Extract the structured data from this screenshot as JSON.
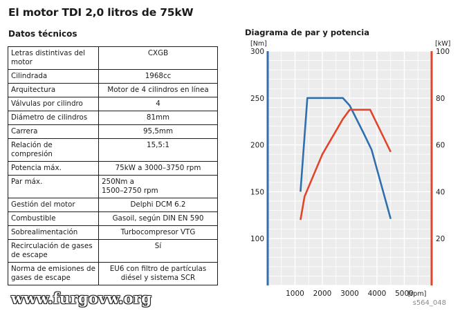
{
  "title": "El motor TDI 2,0 litros de 75kW",
  "section_title": "Datos técnicos",
  "specs": [
    {
      "label": "Letras distintivas del motor",
      "value": "CXGB"
    },
    {
      "label": "Cilindrada",
      "value": "1968cc"
    },
    {
      "label": "Arquitectura",
      "value": "Motor de 4 cilindros en línea"
    },
    {
      "label": "Válvulas por cilindro",
      "value": "4"
    },
    {
      "label": "Diámetro de cilindros",
      "value": "81mm"
    },
    {
      "label": "Carrera",
      "value": "95,5mm"
    },
    {
      "label": "Relación de compresión",
      "value": "15,5:1"
    },
    {
      "label": "Potencia máx.",
      "value": "75kW a 3000–3750 rpm"
    },
    {
      "label": "Par máx.",
      "value": "250Nm a\n1500–2750 rpm"
    },
    {
      "label": "Gestión del motor",
      "value": "Delphi DCM 6.2"
    },
    {
      "label": "Combustible",
      "value": "Gasoil, según DIN EN 590"
    },
    {
      "label": "Sobrealimentación",
      "value": "Turbocompresor VTG"
    },
    {
      "label": "Recirculación de gases de escape",
      "value": "Sí"
    },
    {
      "label": "Norma de emisiones de gases de escape",
      "value": "EU6 con filtro de partículas diésel y sistema SCR"
    }
  ],
  "watermark": "www.furgovw.org",
  "figure_code": "s564_048",
  "chart_data": {
    "type": "line",
    "title": "Diagrama de par y potencia",
    "xlabel": "[rpm]",
    "ylabel_left": "[Nm]",
    "ylabel_right": "[kW]",
    "xlim": [
      0,
      6000
    ],
    "xticks": [
      1000,
      2000,
      3000,
      4000,
      5000
    ],
    "ylim_left": [
      50,
      300
    ],
    "yticks_left": [
      100,
      150,
      200,
      250,
      300
    ],
    "ylim_right": [
      0,
      100
    ],
    "yticks_right": [
      20,
      40,
      60,
      80,
      100
    ],
    "grid": true,
    "colors": {
      "torque": "#2f6fad",
      "power": "#e0452b",
      "background": "#ececec",
      "grid": "#ffffff"
    },
    "series": [
      {
        "key": "torque",
        "axis": "left",
        "x": [
          1200,
          1450,
          2750,
          3000,
          3500,
          3800,
          4500
        ],
        "y": [
          150,
          250,
          250,
          242,
          213,
          195,
          121
        ]
      },
      {
        "key": "power",
        "axis": "right",
        "x": [
          1200,
          1350,
          2000,
          2750,
          3000,
          3750,
          4500
        ],
        "y": [
          28,
          38,
          56,
          71,
          75,
          75,
          57
        ]
      }
    ]
  }
}
